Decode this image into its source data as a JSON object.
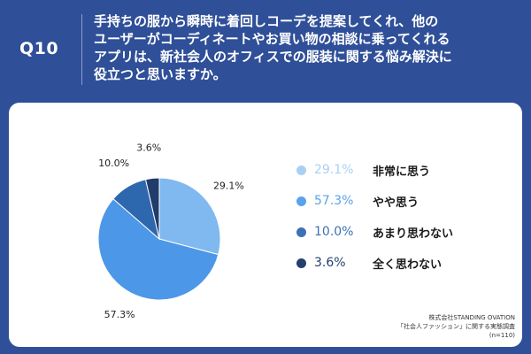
{
  "header": {
    "question_number": "Q10",
    "question_lines": [
      "手持ちの服から瞬時に着回しコーデを提案してくれ、他の",
      "ユーザーがコーディネートやお買い物の相談に乗ってくれる",
      "アプリは、新社会人のオフィスでの服装に関する悩み解決に",
      "役立つと思いますか。"
    ]
  },
  "chart_data": {
    "type": "pie",
    "categories": [
      "非常に思う",
      "やや思う",
      "あまり思わない",
      "全く思わない"
    ],
    "values": [
      29.1,
      57.3,
      10.0,
      3.6
    ],
    "value_labels": [
      "29.1%",
      "57.3%",
      "10.0%",
      "3.6%"
    ],
    "colors": [
      "#7fb9ef",
      "#4d97e8",
      "#2d67ad",
      "#1f3c6b"
    ],
    "legend_colors": [
      "#a8d0f5",
      "#5aa2ec",
      "#3b72b5",
      "#253f6d"
    ],
    "start_angle_deg": 0,
    "direction": "clockwise",
    "legend_position": "right"
  },
  "source": {
    "company": "株式会社STANDING OVATION",
    "survey": "「社会人ファッション」に関する実態調査",
    "n": "(n=110)"
  }
}
